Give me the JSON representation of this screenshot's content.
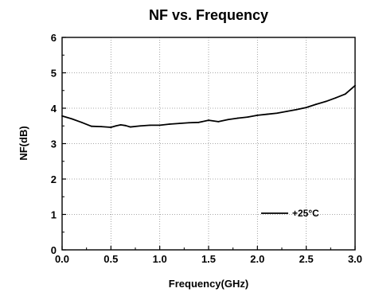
{
  "chart_data": {
    "type": "line",
    "title": "NF vs. Frequency",
    "xlabel": "Frequency(GHz)",
    "ylabel": "NF(dB)",
    "xlim": [
      0,
      3.0
    ],
    "ylim": [
      0,
      6
    ],
    "xticks": [
      "0.0",
      "0.5",
      "1.0",
      "1.5",
      "2.0",
      "2.5",
      "3.0"
    ],
    "yticks": [
      "0",
      "1",
      "2",
      "3",
      "4",
      "5",
      "6"
    ],
    "grid": true,
    "legend_position": "bottom-right",
    "series": [
      {
        "name": "+25°C",
        "color": "#000000",
        "x": [
          0.0,
          0.1,
          0.2,
          0.3,
          0.4,
          0.5,
          0.55,
          0.6,
          0.65,
          0.7,
          0.8,
          0.9,
          1.0,
          1.1,
          1.2,
          1.3,
          1.4,
          1.5,
          1.6,
          1.7,
          1.8,
          1.9,
          2.0,
          2.1,
          2.2,
          2.3,
          2.4,
          2.5,
          2.6,
          2.7,
          2.8,
          2.9,
          3.0
        ],
        "y": [
          3.78,
          3.7,
          3.6,
          3.49,
          3.48,
          3.46,
          3.5,
          3.53,
          3.51,
          3.47,
          3.5,
          3.52,
          3.52,
          3.55,
          3.57,
          3.59,
          3.6,
          3.66,
          3.62,
          3.68,
          3.72,
          3.75,
          3.8,
          3.83,
          3.86,
          3.91,
          3.96,
          4.02,
          4.11,
          4.19,
          4.29,
          4.4,
          4.64
        ]
      }
    ]
  }
}
